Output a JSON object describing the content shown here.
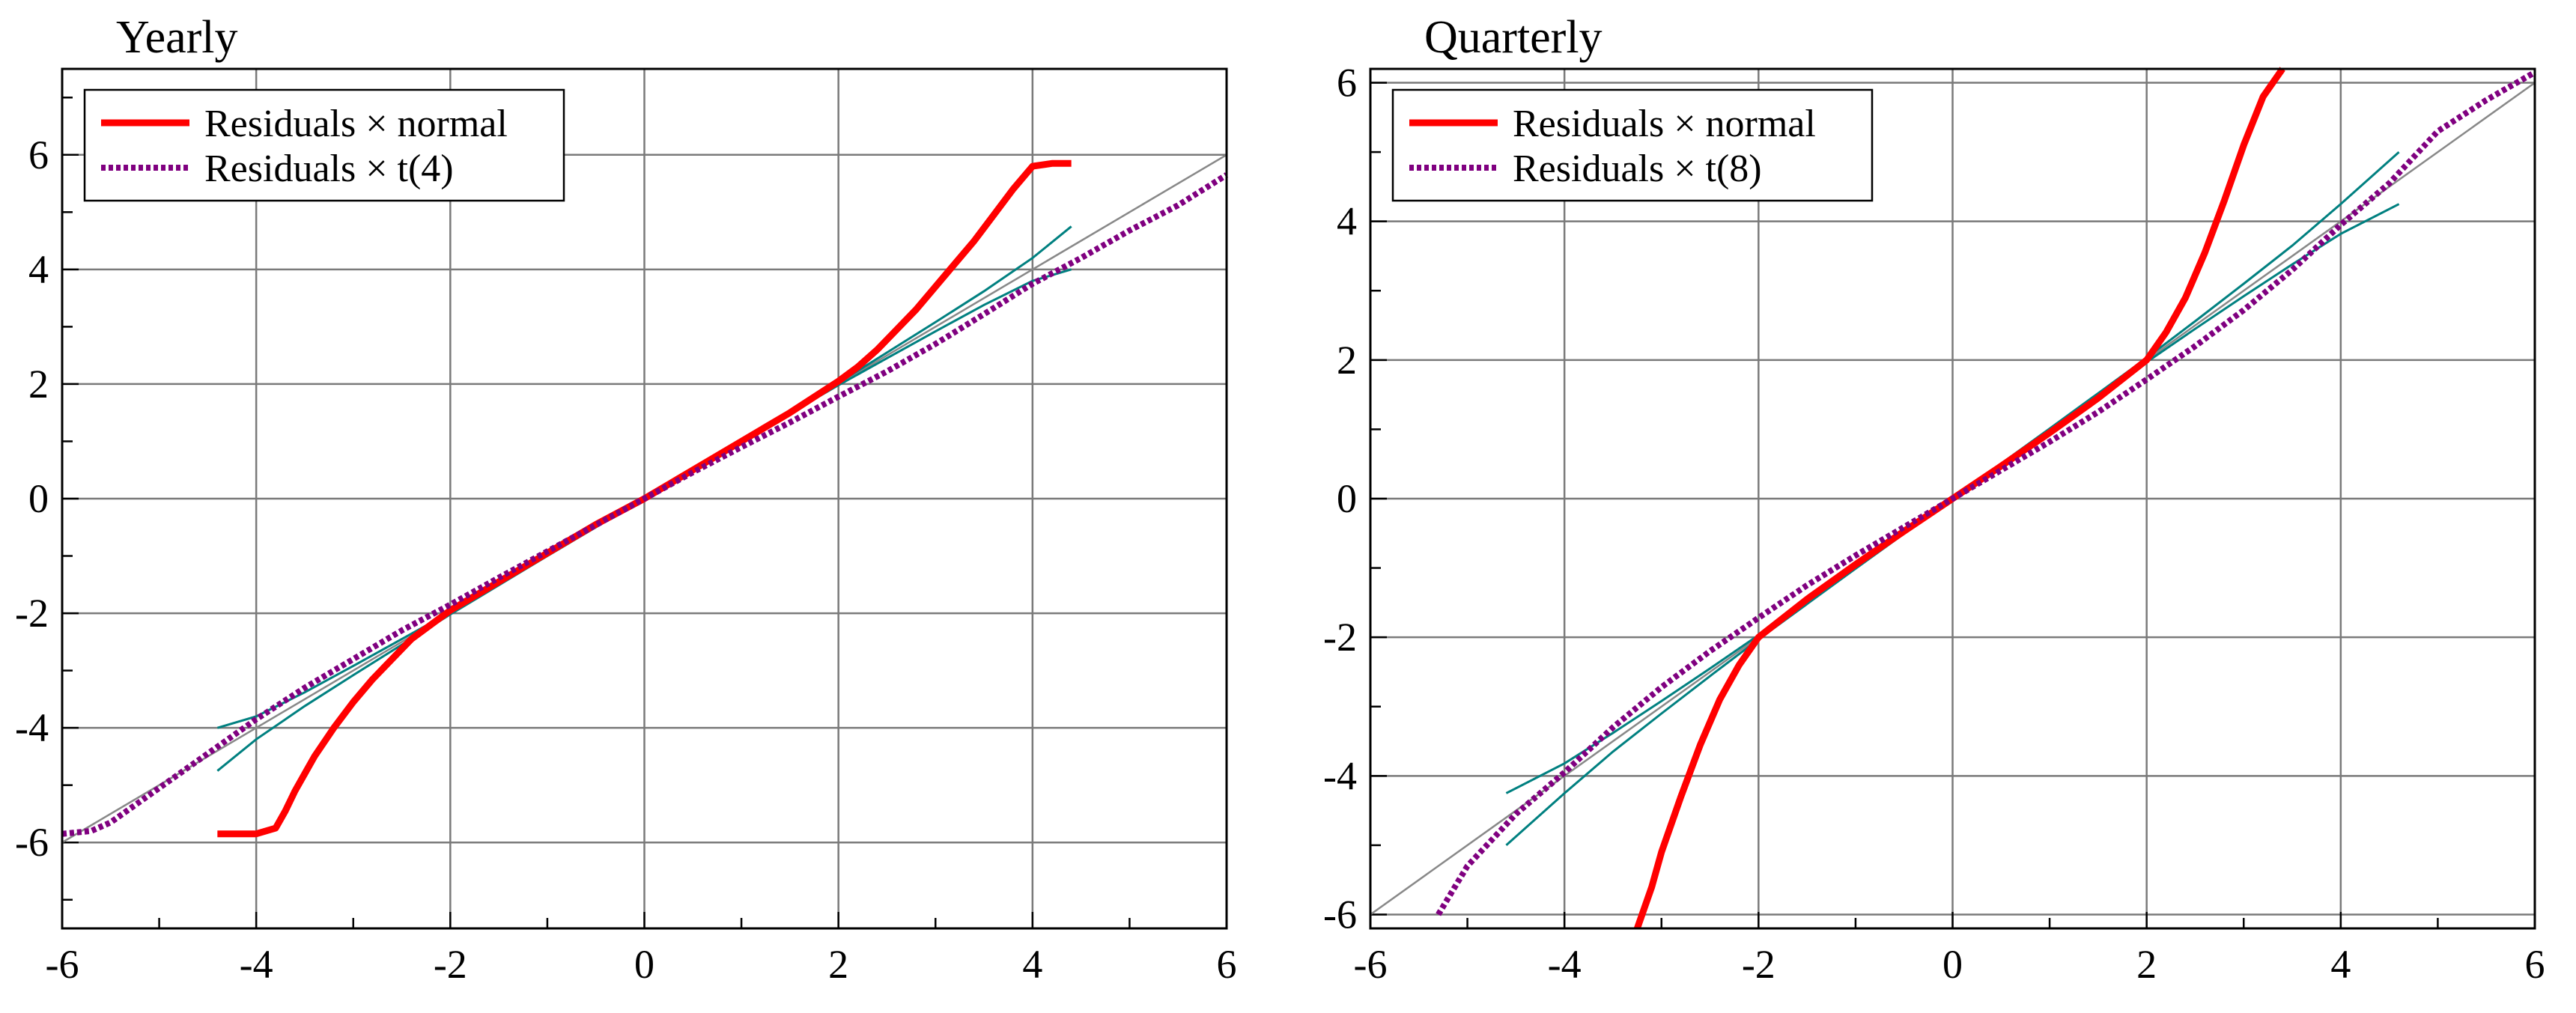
{
  "chart_data": [
    {
      "type": "line",
      "title": "Yearly",
      "xlabel": "",
      "ylabel": "",
      "xlim": [
        -6,
        6
      ],
      "ylim": [
        -7.5,
        7.5
      ],
      "xticks": [
        -6,
        -4,
        -2,
        0,
        2,
        4,
        6
      ],
      "yticks": [
        -6,
        -4,
        -2,
        0,
        2,
        4,
        6
      ],
      "grid": true,
      "legend_position": "top-left",
      "legend": [
        "Residuals × normal",
        "Residuals × t(4)"
      ],
      "series": [
        {
          "name": "Residuals × normal",
          "color": "#ff0000",
          "style": "solid",
          "x": [
            -4.4,
            -4.0,
            -3.8,
            -3.7,
            -3.6,
            -3.5,
            -3.4,
            -3.2,
            -3.0,
            -2.8,
            -2.6,
            -2.4,
            -2.2,
            -2.0,
            -1.5,
            -1.0,
            -0.5,
            0,
            0.5,
            1.0,
            1.5,
            2.0,
            2.2,
            2.4,
            2.6,
            2.8,
            3.0,
            3.2,
            3.4,
            3.6,
            3.8,
            4.0,
            4.2,
            4.4
          ],
          "y": [
            -5.85,
            -5.85,
            -5.75,
            -5.45,
            -5.1,
            -4.8,
            -4.5,
            -4.0,
            -3.55,
            -3.15,
            -2.8,
            -2.45,
            -2.2,
            -1.95,
            -1.45,
            -0.95,
            -0.45,
            0,
            0.5,
            1.0,
            1.5,
            2.05,
            2.3,
            2.6,
            2.95,
            3.3,
            3.7,
            4.1,
            4.5,
            4.95,
            5.4,
            5.8,
            5.85,
            5.85
          ]
        },
        {
          "name": "Residuals × t(4)",
          "color": "#800080",
          "style": "dotted",
          "x": [
            -6.0,
            -5.7,
            -5.5,
            -5.0,
            -4.5,
            -4.0,
            -3.5,
            -3.0,
            -2.5,
            -2.0,
            -1.5,
            -1.0,
            -0.5,
            0,
            0.5,
            1.0,
            1.5,
            2.0,
            2.5,
            3.0,
            3.5,
            4.0,
            4.5,
            5.0,
            5.5,
            6.0
          ],
          "y": [
            -5.85,
            -5.8,
            -5.65,
            -5.05,
            -4.45,
            -3.85,
            -3.3,
            -2.8,
            -2.3,
            -1.85,
            -1.38,
            -0.92,
            -0.46,
            0,
            0.46,
            0.9,
            1.33,
            1.78,
            2.22,
            2.7,
            3.22,
            3.75,
            4.2,
            4.68,
            5.12,
            5.65
          ]
        }
      ],
      "reference_line": {
        "name": "45-degree line",
        "color": "#888888",
        "x": [
          -6,
          6
        ],
        "y": [
          -6,
          6
        ]
      },
      "bands": [
        {
          "name": "normal band",
          "color": "#008080",
          "x": [
            -4.4,
            -4.0,
            -3.5,
            -3.0,
            -2.5,
            -2.0,
            -1.5,
            -1.0,
            0,
            1.0,
            1.5,
            2.0,
            2.5,
            3.0,
            3.5,
            4.0,
            4.4
          ],
          "lower": [
            -4.75,
            -4.2,
            -3.62,
            -3.08,
            -2.55,
            -2.02,
            -1.51,
            -1.0,
            0,
            0.99,
            1.49,
            1.98,
            2.45,
            2.92,
            3.38,
            3.8,
            4.0
          ],
          "upper": [
            -4.0,
            -3.8,
            -3.38,
            -2.92,
            -2.45,
            -1.98,
            -1.49,
            -0.99,
            0,
            1.0,
            1.51,
            2.02,
            2.55,
            3.08,
            3.62,
            4.2,
            4.75
          ]
        }
      ]
    },
    {
      "type": "line",
      "title": "Quarterly",
      "xlabel": "",
      "ylabel": "",
      "xlim": [
        -6,
        6
      ],
      "ylim": [
        -6.2,
        6.2
      ],
      "xticks": [
        -6,
        -4,
        -2,
        0,
        2,
        4,
        6
      ],
      "yticks": [
        -6,
        -4,
        -2,
        0,
        2,
        4,
        6
      ],
      "grid": true,
      "legend_position": "top-left",
      "legend": [
        "Residuals × normal",
        "Residuals × t(8)"
      ],
      "series": [
        {
          "name": "Residuals × normal",
          "color": "#ff0000",
          "style": "solid",
          "x": [
            -3.25,
            -3.1,
            -3.0,
            -2.8,
            -2.6,
            -2.4,
            -2.2,
            -2.0,
            -1.5,
            -1.0,
            -0.5,
            0,
            0.5,
            1.0,
            1.5,
            2.0,
            2.2,
            2.4,
            2.6,
            2.8,
            3.0,
            3.2,
            3.4
          ],
          "y": [
            -6.2,
            -5.6,
            -5.1,
            -4.3,
            -3.55,
            -2.9,
            -2.4,
            -2.0,
            -1.45,
            -0.95,
            -0.47,
            0,
            0.47,
            0.95,
            1.45,
            2.0,
            2.4,
            2.9,
            3.55,
            4.3,
            5.1,
            5.8,
            6.2
          ]
        },
        {
          "name": "Residuals × t(8)",
          "color": "#800080",
          "style": "dotted",
          "x": [
            -5.3,
            -5.0,
            -4.5,
            -4.0,
            -3.5,
            -3.0,
            -2.5,
            -2.0,
            -1.5,
            -1.0,
            -0.5,
            0,
            0.5,
            1.0,
            1.5,
            2.0,
            2.5,
            3.0,
            3.5,
            4.0,
            4.5,
            5.0,
            5.5,
            6.0
          ],
          "y": [
            -6.0,
            -5.3,
            -4.55,
            -3.95,
            -3.3,
            -2.72,
            -2.2,
            -1.72,
            -1.25,
            -0.82,
            -0.41,
            0,
            0.41,
            0.82,
            1.25,
            1.72,
            2.2,
            2.72,
            3.3,
            3.95,
            4.55,
            5.3,
            5.75,
            6.15
          ]
        }
      ],
      "reference_line": {
        "name": "45-degree line",
        "color": "#888888",
        "x": [
          -6,
          6
        ],
        "y": [
          -6,
          6
        ]
      },
      "bands": [
        {
          "name": "normal band",
          "color": "#008080",
          "x": [
            -4.6,
            -4.0,
            -3.5,
            -3.0,
            -2.5,
            -2.0,
            -1.5,
            -1.0,
            0,
            1.0,
            1.5,
            2.0,
            2.5,
            3.0,
            3.5,
            4.0,
            4.6
          ],
          "lower": [
            -5.0,
            -4.25,
            -3.65,
            -3.1,
            -2.56,
            -2.03,
            -1.52,
            -1.01,
            0,
            0.99,
            1.48,
            1.97,
            2.45,
            2.92,
            3.38,
            3.82,
            4.25
          ],
          "upper": [
            -4.25,
            -3.82,
            -3.38,
            -2.92,
            -2.45,
            -1.97,
            -1.48,
            -0.99,
            0,
            1.01,
            1.52,
            2.03,
            2.56,
            3.1,
            3.65,
            4.25,
            5.0
          ]
        }
      ]
    }
  ]
}
